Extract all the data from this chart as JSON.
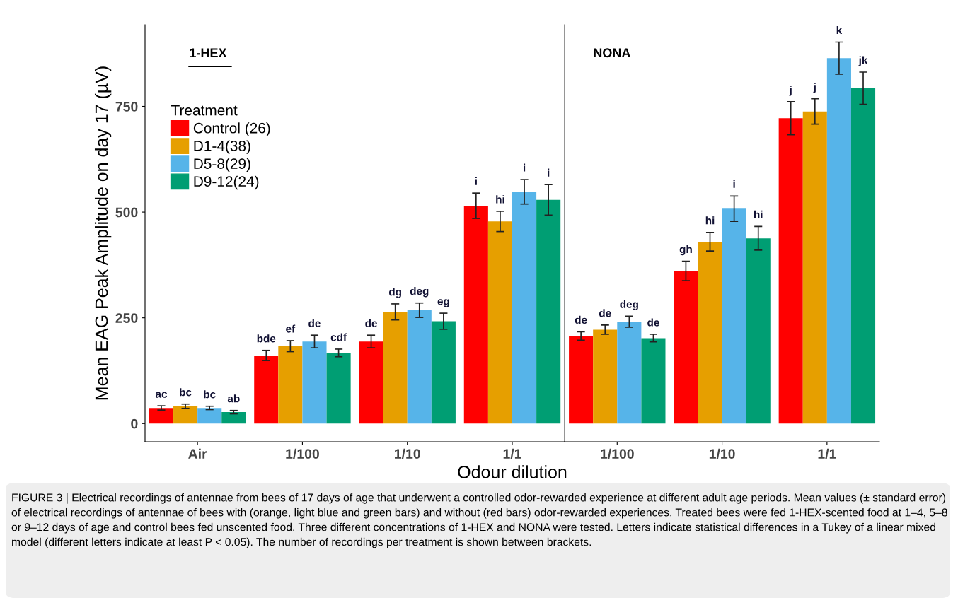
{
  "chart_data": [
    {
      "type": "bar",
      "categories": [
        "Air",
        "1/100",
        "1/10",
        "1/1"
      ],
      "ylabel": "Mean EAG Peak Amplitude on day 17 (µV)",
      "xlabel": "Odour dilution",
      "legend_title": "Treatment",
      "legend": "top left",
      "grid": false,
      "ylim": [
        -43,
        943
      ],
      "yticks": [
        0,
        250,
        500,
        750
      ],
      "annotations": [
        "1-HEX",
        "FIGURE 3 | Electrical recordings of antennae from bees of 17 days of age that underwent a controlled odor-rewarded experience at different adult age periods. Mean values (± standard error) of electrical recordings of antennae of bees with (orange, light blue and green bars) and without (red bars) odor-rewarded experiences. Treated bees were fed 1-HEX-scented food at 1–4, 5–8 or 9–12 days of age and control bees fed unscented food. Three different concentrations of 1-HEX and NONA were tested. Letters indicate statistical differences in a Tukey of a linear mixed model (different letters indicate at least P < 0.05). The number of recordings per treatment is shown between brackets."
      ],
      "series": [
        {
          "name": "Control (26)",
          "color": "#ff0000",
          "values": [
            37,
            161,
            194,
            515
          ],
          "errors": [
            5,
            12,
            15,
            30
          ],
          "value_labels": [
            "ac",
            "bde",
            "de",
            "i"
          ]
        },
        {
          "name": "D1-4(38)",
          "color": "#e69f00",
          "values": [
            41,
            183,
            264,
            478
          ],
          "errors": [
            5,
            13,
            19,
            24
          ],
          "value_labels": [
            "bc",
            "ef",
            "dg",
            "hi"
          ]
        },
        {
          "name": "D5-8(29)",
          "color": "#56b4e9",
          "values": [
            37,
            194,
            268,
            548
          ],
          "errors": [
            4,
            15,
            17,
            29
          ],
          "value_labels": [
            "bc",
            "de",
            "deg",
            "i"
          ]
        },
        {
          "name": "D9-12(24)",
          "color": "#009e73",
          "values": [
            27,
            167,
            242,
            529
          ],
          "errors": [
            4,
            9,
            19,
            36
          ],
          "value_labels": [
            "ab",
            "cdf",
            "eg",
            "i"
          ]
        }
      ]
    },
    {
      "type": "bar",
      "categories": [
        "1/100",
        "1/10",
        "1/1"
      ],
      "grid": false,
      "ylim": [
        -43,
        943
      ],
      "yticks": [
        0,
        250,
        500,
        750
      ],
      "tick_labels": "x",
      "annotations": [
        "NONA"
      ],
      "series": [
        {
          "color": "#ff0000",
          "values": [
            207,
            361,
            722
          ],
          "errors": [
            10,
            23,
            39
          ],
          "value_labels": [
            "de",
            "gh",
            "j"
          ]
        },
        {
          "color": "#e69f00",
          "values": [
            222,
            430,
            738
          ],
          "errors": [
            11,
            22,
            30
          ],
          "value_labels": [
            "de",
            "hi",
            "j"
          ]
        },
        {
          "color": "#56b4e9",
          "values": [
            241,
            508,
            864
          ],
          "errors": [
            13,
            30,
            38
          ],
          "value_labels": [
            "deg",
            "i",
            "k"
          ]
        },
        {
          "color": "#009e73",
          "values": [
            202,
            438,
            793
          ],
          "errors": [
            9,
            28,
            38
          ],
          "value_labels": [
            "de",
            "hi",
            "jk"
          ]
        }
      ]
    }
  ]
}
